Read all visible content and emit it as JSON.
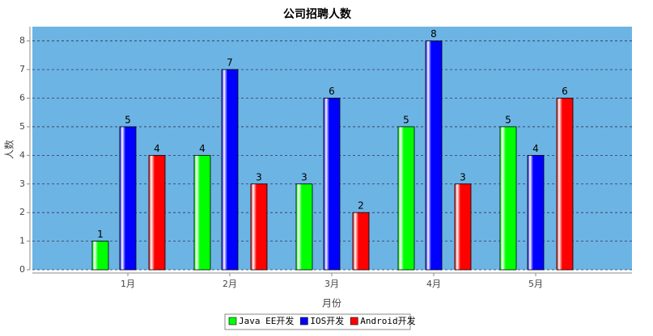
{
  "chart_data": {
    "type": "bar",
    "title": "公司招聘人数",
    "x_label": "月份",
    "y_label": "人数",
    "categories": [
      "1月",
      "2月",
      "3月",
      "4月",
      "5月"
    ],
    "series": [
      {
        "name": "Java EE开发",
        "color": "#00ff00",
        "values": [
          1,
          4,
          3,
          5,
          5
        ]
      },
      {
        "name": "IOS开发",
        "color": "#0000ff",
        "values": [
          5,
          7,
          6,
          8,
          4
        ]
      },
      {
        "name": "Android开发",
        "color": "#ff0000",
        "values": [
          4,
          3,
          2,
          3,
          6
        ]
      }
    ],
    "ylim": [
      0,
      8.5
    ],
    "yticks": [
      0,
      1,
      2,
      3,
      4,
      5,
      6,
      7,
      8
    ],
    "grid": true,
    "legend": "bottom"
  }
}
